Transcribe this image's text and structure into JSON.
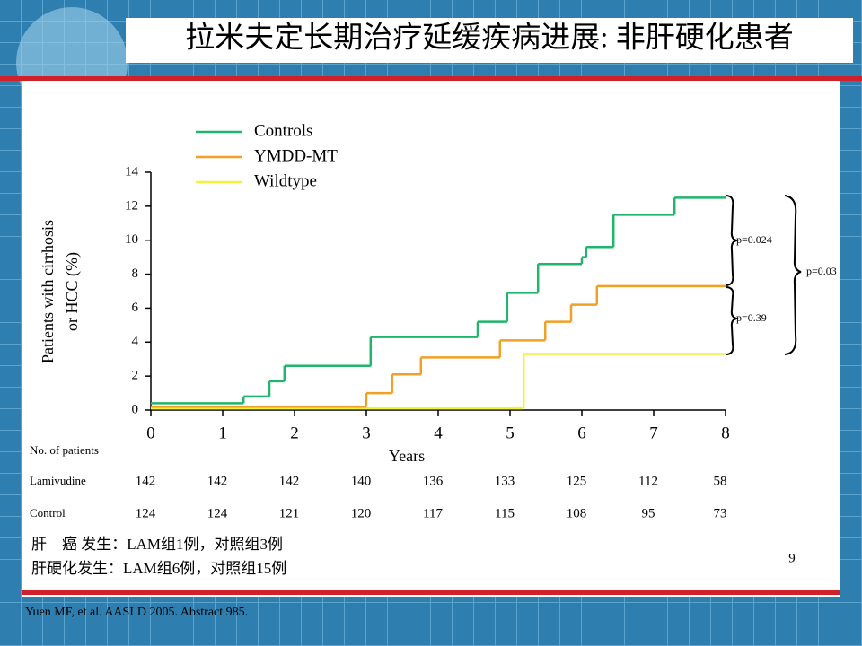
{
  "chart_data": {
    "type": "step",
    "title": "拉米夫定长期治疗延缓疾病进展: 非肝硬化患者",
    "ylabel": [
      "Patients with cirrhosis",
      "or HCC (%)"
    ],
    "xlabel": "Years",
    "xlim": [
      0,
      8
    ],
    "xticks": [
      0,
      1,
      2,
      3,
      4,
      5,
      6,
      7,
      8
    ],
    "ylim": [
      0,
      14
    ],
    "yticks": [
      0,
      2,
      4,
      6,
      8,
      10,
      12,
      14
    ],
    "series": [
      {
        "name": "Controls",
        "color": "#1fb56c",
        "x": [
          0,
          1.29,
          1.65,
          1.86,
          3.06,
          4.55,
          4.96,
          5.39,
          6.0,
          6.06,
          6.44,
          7.29
        ],
        "values": [
          0.4,
          0.8,
          1.7,
          2.6,
          4.3,
          5.2,
          6.9,
          8.6,
          9.0,
          9.6,
          11.5,
          12.5
        ]
      },
      {
        "name": "YMDD-MT",
        "color": "#f0a024",
        "x": [
          0,
          3.0,
          3.36,
          3.76,
          4.86,
          5.49,
          5.85,
          6.21
        ],
        "values": [
          0.2,
          1.0,
          2.1,
          3.1,
          4.1,
          5.2,
          6.2,
          7.3
        ]
      },
      {
        "name": "Wildtype",
        "color": "#f2f23a",
        "x": [
          0,
          5.19
        ],
        "values": [
          0.1,
          3.3
        ]
      }
    ],
    "annotations": [
      "p=0.024",
      "p=0.39",
      "p=0.03"
    ],
    "risk_table": {
      "title": "No. of patients",
      "rows": [
        {
          "label": "Lamivudine",
          "values": [
            142,
            142,
            142,
            140,
            136,
            133,
            125,
            112,
            58
          ]
        },
        {
          "label": "Control",
          "values": [
            124,
            124,
            121,
            120,
            117,
            115,
            108,
            95,
            73
          ]
        }
      ]
    }
  },
  "notes": [
    "肝　癌 发生：LAM组1例，对照组3例",
    "肝硬化发生：LAM组6例，对照组15例"
  ],
  "page_number": "9",
  "citation": "Yuen MF, et al. AASLD 2005. Abstract 985."
}
